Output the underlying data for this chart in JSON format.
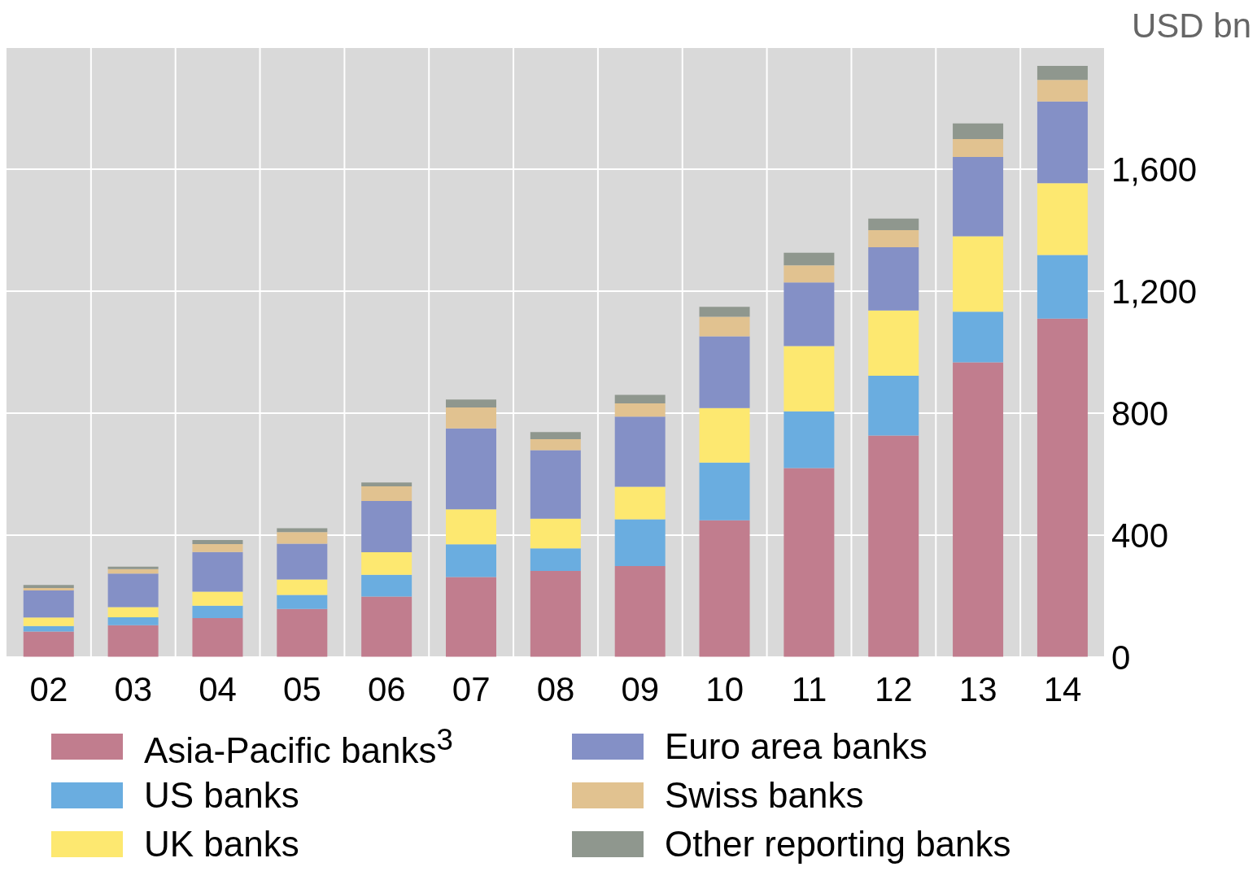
{
  "chart_data": {
    "type": "bar",
    "stacked": true,
    "ylabel": "USD bn",
    "categories": [
      "02",
      "03",
      "04",
      "05",
      "06",
      "07",
      "08",
      "09",
      "10",
      "11",
      "12",
      "13",
      "14"
    ],
    "series": [
      {
        "name": "Asia-Pacific banks$^{3}$",
        "color": "#c17d8e",
        "values": [
          84,
          105,
          128,
          158,
          199,
          263,
          283,
          299,
          449,
          620,
          727,
          967,
          1110
        ]
      },
      {
        "name": "US banks",
        "color": "#6aade0",
        "values": [
          18,
          26,
          41,
          46,
          71,
          107,
          74,
          153,
          189,
          186,
          196,
          166,
          209
        ]
      },
      {
        "name": "UK banks",
        "color": "#fde870",
        "values": [
          28,
          33,
          46,
          51,
          74,
          115,
          97,
          107,
          179,
          214,
          214,
          247,
          235
        ]
      },
      {
        "name": "Euro area banks",
        "color": "#8490c6",
        "values": [
          89,
          110,
          130,
          117,
          168,
          265,
          225,
          230,
          235,
          209,
          207,
          260,
          268
        ]
      },
      {
        "name": "Swiss banks",
        "color": "#e1c290",
        "values": [
          8,
          15,
          26,
          38,
          48,
          69,
          36,
          43,
          64,
          56,
          56,
          59,
          71
        ]
      },
      {
        "name": "Other reporting banks",
        "color": "#8f978e",
        "values": [
          10,
          8,
          13,
          13,
          13,
          26,
          23,
          28,
          33,
          41,
          38,
          51,
          46
        ]
      }
    ],
    "ylim": [
      0,
      2000
    ],
    "yticks": [
      0,
      400,
      800,
      {
        "value": 1200,
        "label": "1,200"
      },
      {
        "value": 1600,
        "label": "1,600"
      }
    ],
    "grid": true,
    "legend": "bottom"
  }
}
